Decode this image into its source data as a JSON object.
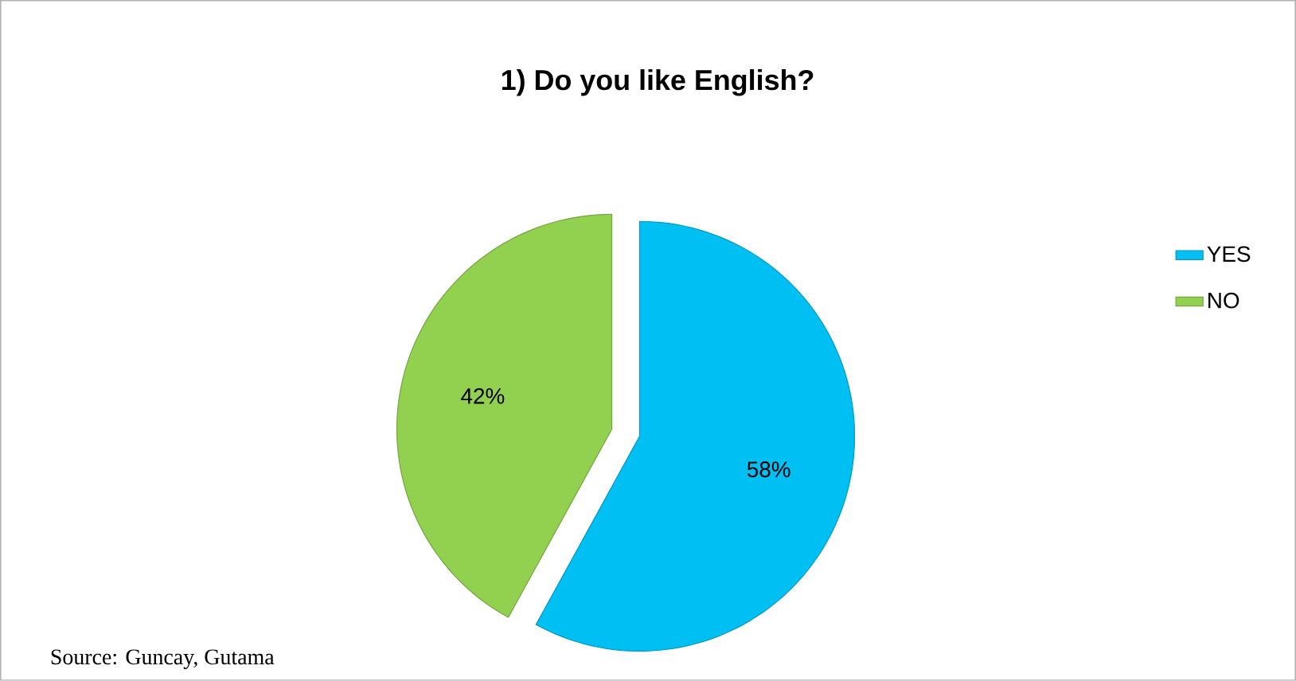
{
  "chart_data": {
    "type": "pie",
    "title": "1) Do you like English?",
    "categories": [
      "YES",
      "NO"
    ],
    "values": [
      58,
      42
    ],
    "value_labels": [
      "58%",
      "42%"
    ],
    "colors": [
      "#00bff3",
      "#92d050"
    ],
    "legend": "right",
    "annotations": [
      "Source: Guncay, Gutama"
    ]
  }
}
